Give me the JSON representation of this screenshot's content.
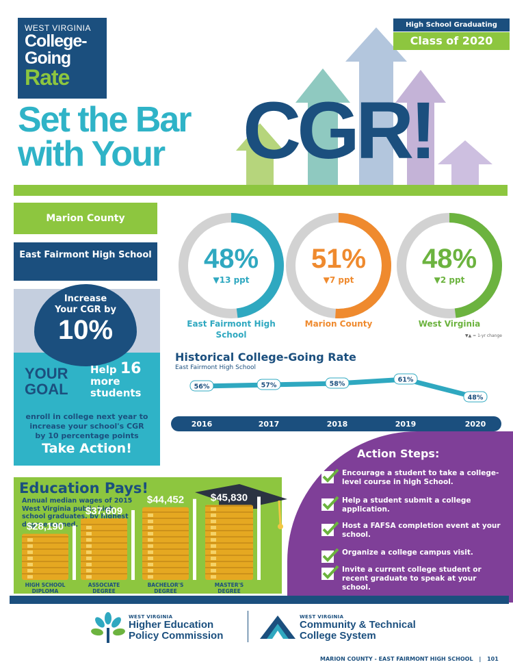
{
  "logo": {
    "line1": "WEST VIRGINIA",
    "line2": "College-",
    "line3": "Going",
    "line4": "Rate"
  },
  "badge": {
    "label": "High School Graduating",
    "class": "Class of 2020"
  },
  "headline": {
    "line1": "Set the Bar",
    "line2": "with Your",
    "cgr": "CGR!"
  },
  "county": "Marion County",
  "school": "East Fairmont High School",
  "goal": {
    "increase_line1": "Increase",
    "increase_line2": "Your CGR by",
    "percent": "10%",
    "your": "YOUR",
    "goal_word": "GOAL",
    "help": "Help",
    "help_count": "16",
    "help_more": "more",
    "help_students": "students",
    "enroll": "enroll in college next year to increase your school's CGR by 10 percentage points",
    "take_action": "Take Action!"
  },
  "rates": [
    {
      "name": "East Fairmont High School",
      "pct": "48%",
      "change": "▼13 ppt",
      "value": 48,
      "color": "#2fa8c0"
    },
    {
      "name": "Marion County",
      "pct": "51%",
      "change": "▼7 ppt",
      "value": 51,
      "color": "#ef8a2e"
    },
    {
      "name": "West Virginia",
      "pct": "48%",
      "change": "▼2 ppt",
      "value": 48,
      "color": "#6cb33f"
    }
  ],
  "change_note": "▼▲ = 1-yr change",
  "history": {
    "title": "Historical College-Going Rate",
    "subtitle": "East Fairmont High School"
  },
  "chart_data": {
    "type": "line",
    "categories": [
      "2016",
      "2017",
      "2018",
      "2019",
      "2020"
    ],
    "values": [
      56,
      57,
      58,
      61,
      48
    ],
    "labels": [
      "56%",
      "57%",
      "58%",
      "61%",
      "48%"
    ],
    "ylim": [
      40,
      70
    ],
    "title": "Historical College-Going Rate",
    "subtitle": "East Fairmont High School"
  },
  "education": {
    "title": "Education Pays!",
    "subtitle": "Annual median wages of 2015 West Virginia public high school graduates, by highest degree earned.",
    "items": [
      {
        "wage": "$28,190",
        "label1": "HIGH SCHOOL",
        "label2": "DIPLOMA",
        "value": 28190
      },
      {
        "wage": "$37,609",
        "label1": "ASSOCIATE",
        "label2": "DEGREE",
        "value": 37609
      },
      {
        "wage": "$44,452",
        "label1": "BACHELOR'S",
        "label2": "DEGREE",
        "value": 44452
      },
      {
        "wage": "$45,830",
        "label1": "MASTER'S",
        "label2": "DEGREE",
        "value": 45830
      }
    ]
  },
  "actions": {
    "title": "Action Steps:",
    "steps": [
      "Encourage a student to take a college-level course in high School.",
      "Help a student submit a college application.",
      "Host a FAFSA completion event at your school.",
      "Organize a college campus visit.",
      "Invite a current college student or recent graduate to speak at your school."
    ]
  },
  "footer": {
    "hepc_state": "WEST VIRGINIA",
    "hepc_line1": "Higher Education",
    "hepc_line2": "Policy Commission",
    "ctcs_state": "WEST VIRGINIA",
    "ctcs_line1": "Community & Technical",
    "ctcs_line2": "College System",
    "page_label": "MARION COUNTY - EAST FAIRMONT HIGH SCHOOL",
    "page_number": "101"
  }
}
